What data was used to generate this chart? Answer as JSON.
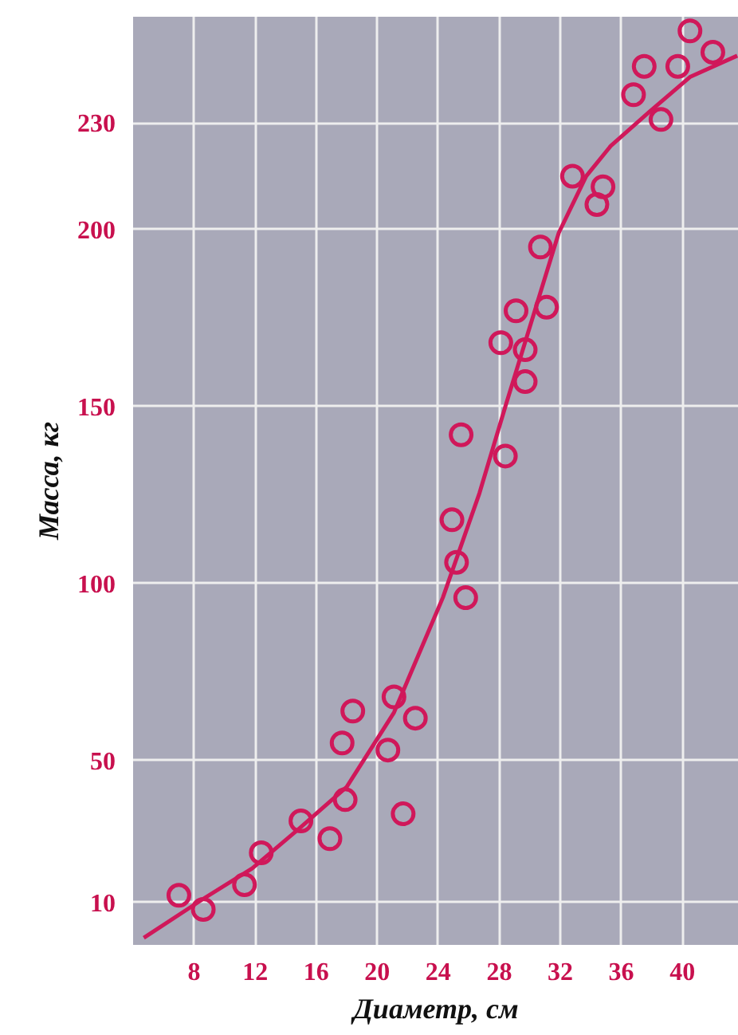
{
  "chart_data": {
    "type": "scatter",
    "xlabel": "Диаметр, см",
    "ylabel": "Масса, кг",
    "xlim": [
      4.0,
      43.7
    ],
    "ylim": [
      -2,
      260
    ],
    "xticks": [
      8,
      12,
      16,
      20,
      24,
      28,
      32,
      36,
      40
    ],
    "yticks": [
      10,
      50,
      100,
      150,
      200,
      230
    ],
    "grid": true,
    "marker": "circle",
    "series": [
      {
        "color": "#d0185a",
        "x": [
          7.0,
          8.6,
          11.3,
          12.4,
          15.0,
          16.9,
          17.9,
          17.7,
          18.4,
          20.7,
          21.7,
          21.1,
          22.5,
          24.9,
          25.2,
          25.8,
          28.4,
          25.5,
          29.7,
          29.7,
          28.1,
          29.1,
          31.1,
          30.7,
          32.8,
          34.8,
          34.4,
          38.6,
          36.8,
          37.5,
          39.7,
          40.5,
          42.0
        ],
        "values": [
          12,
          8,
          15,
          24,
          33,
          28,
          39,
          55,
          64,
          53,
          35,
          68,
          62,
          118,
          106,
          96,
          136,
          142,
          157,
          166,
          168,
          177,
          178,
          195,
          215,
          212,
          207,
          231,
          238,
          246,
          246,
          256,
          250
        ]
      },
      {
        "type": "line",
        "color": "#d0185a",
        "marker": "none",
        "x": [
          4.7,
          8.6,
          11.8,
          14.9,
          18.0,
          21.1,
          24.3,
          26.7,
          28.4,
          31.9,
          33.7,
          35.3,
          37.8,
          40.5,
          43.6
        ],
        "values": [
          0,
          11,
          19.6,
          30.9,
          42.6,
          63.6,
          96,
          125.5,
          150,
          199,
          215,
          223.5,
          233,
          243,
          249
        ]
      }
    ]
  }
}
